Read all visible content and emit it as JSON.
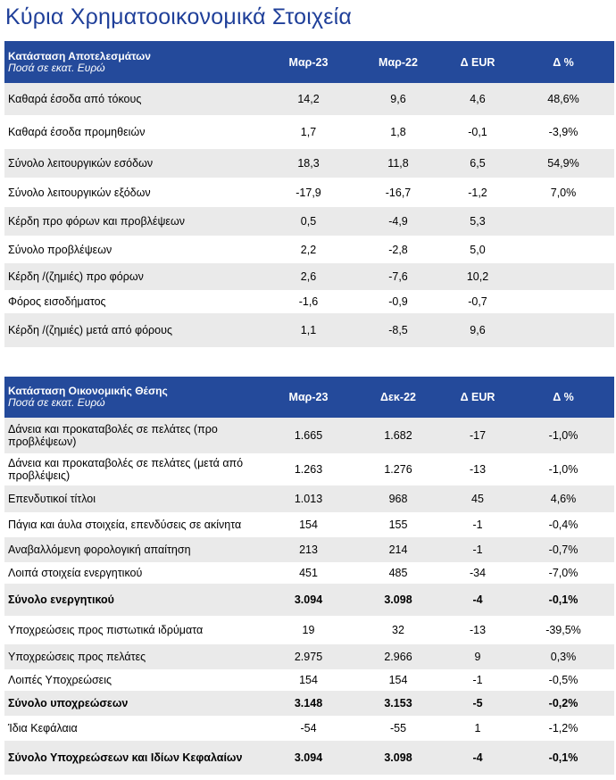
{
  "page_title": "Κύρια Χρηματοοικονομικά Στοιχεία",
  "colors": {
    "title": "#1f3f99",
    "header_bg": "#244a9b",
    "header_text": "#ffffff",
    "row_shade": "#eaeaea"
  },
  "income_statement": {
    "title": "Κατάσταση Αποτελεσμάτων",
    "subtitle": "Ποσά σε εκατ. Ευρώ",
    "columns": [
      "Μαρ-23",
      "Μαρ-22",
      "Δ EUR",
      "Δ %"
    ],
    "rows": [
      {
        "label": "Καθαρά έσοδα από τόκους",
        "values": [
          "14,2",
          "9,6",
          "4,6",
          "48,6%"
        ]
      },
      {
        "label": "Καθαρά έσοδα προμηθειών",
        "values": [
          "1,7",
          "1,8",
          "-0,1",
          "-3,9%"
        ]
      },
      {
        "label": "Σύνολο λειτουργικών εσόδων",
        "values": [
          "18,3",
          "11,8",
          "6,5",
          "54,9%"
        ]
      },
      {
        "label": "Σύνολο λειτουργικών εξόδων",
        "values": [
          "-17,9",
          "-16,7",
          "-1,2",
          "7,0%"
        ]
      },
      {
        "label": "Κέρδη προ φόρων και προβλέψεων",
        "values": [
          "0,5",
          "-4,9",
          "5,3",
          ""
        ]
      },
      {
        "label": "Σύνολο προβλέψεων",
        "values": [
          "2,2",
          "-2,8",
          "5,0",
          ""
        ]
      },
      {
        "label": "Κέρδη /(ζημιές) προ φόρων",
        "values": [
          "2,6",
          "-7,6",
          "10,2",
          ""
        ]
      },
      {
        "label": "Φόρος εισοδήματος",
        "values": [
          "-1,6",
          "-0,9",
          "-0,7",
          ""
        ]
      },
      {
        "label": "Κέρδη /(ζημιές) μετά από φόρους",
        "values": [
          "1,1",
          "-8,5",
          "9,6",
          ""
        ]
      }
    ]
  },
  "financial_position": {
    "title": "Κατάσταση Οικονομικής Θέσης",
    "subtitle": "Ποσά σε εκατ. Ευρώ",
    "columns": [
      "Μαρ-23",
      "Δεκ-22",
      "Δ EUR",
      "Δ %"
    ],
    "rows": [
      {
        "label": "Δάνεια και προκαταβολές σε πελάτες (προ προβλέψεων)",
        "values": [
          "1.665",
          "1.682",
          "-17",
          "-1,0%"
        ]
      },
      {
        "label": "Δάνεια και προκαταβολές σε πελάτες (μετά από προβλέψεις)",
        "values": [
          "1.263",
          "1.276",
          "-13",
          "-1,0%"
        ]
      },
      {
        "label": "Επενδυτικοί τίτλοι",
        "values": [
          "1.013",
          "968",
          "45",
          "4,6%"
        ]
      },
      {
        "label": "Πάγια και άυλα στοιχεία, επενδύσεις σε ακίνητα",
        "values": [
          "154",
          "155",
          "-1",
          "-0,4%"
        ]
      },
      {
        "label": "Αναβαλλόμενη φορολογική απαίτηση",
        "values": [
          "213",
          "214",
          "-1",
          "-0,7%"
        ]
      },
      {
        "label": "Λοιπά στοιχεία ενεργητικού",
        "values": [
          "451",
          "485",
          "-34",
          "-7,0%"
        ]
      },
      {
        "label": "Σύνολο ενεργητικού",
        "values": [
          "3.094",
          "3.098",
          "-4",
          "-0,1%"
        ]
      },
      {
        "label": "Υποχρεώσεις προς πιστωτικά ιδρύματα",
        "values": [
          "19",
          "32",
          "-13",
          "-39,5%"
        ]
      },
      {
        "label": "Υποχρεώσεις προς πελάτες",
        "values": [
          "2.975",
          "2.966",
          "9",
          "0,3%"
        ]
      },
      {
        "label": "Λοιπές Υποχρεώσεις",
        "values": [
          "154",
          "154",
          "-1",
          "-0,5%"
        ]
      },
      {
        "label": "Σύνολο υποχρεώσεων",
        "values": [
          "3.148",
          "3.153",
          "-5",
          "-0,2%"
        ]
      },
      {
        "label": "Ίδια Κεφάλαια",
        "values": [
          "-54",
          "-55",
          "1",
          "-1,2%"
        ]
      },
      {
        "label": "Σύνολο Υποχρεώσεων και Ιδίων Κεφαλαίων",
        "values": [
          "3.094",
          "3.098",
          "-4",
          "-0,1%"
        ]
      }
    ]
  }
}
